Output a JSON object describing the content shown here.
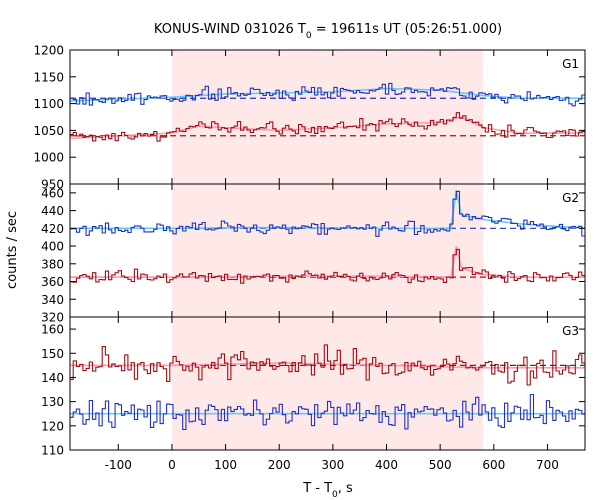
{
  "chart_data": {
    "type": "line",
    "title": "KONUS-WIND 031026 T",
    "title_sub": "0",
    "title_rest": " = 19611s UT (05:26:51.000)",
    "xlabel": "T - T",
    "xlabel_sub": "0",
    "xlabel_rest": ", s",
    "ylabel": "counts / sec",
    "xlim": [
      -190,
      770
    ],
    "x_ticks": [
      -100,
      0,
      100,
      200,
      300,
      400,
      500,
      600,
      700
    ],
    "highlight_interval": [
      0,
      580
    ],
    "colors": {
      "red_series": "#a01010",
      "blue_series": "#2233bb",
      "red_fit": "#ff99bb",
      "blue_fit": "#66ccee",
      "background_level": "#a01010",
      "shade": "#ffe8e8"
    },
    "panels": [
      {
        "label": "G1",
        "ylim": [
          950,
          1200
        ],
        "y_ticks": [
          950,
          1000,
          1050,
          1100,
          1150,
          1200
        ],
        "series": [
          {
            "color": "blue",
            "background": 1110,
            "x": [
              -190,
              -100,
              0,
              100,
              200,
              300,
              400,
              500,
              580,
              650,
              770
            ],
            "y": [
              1105,
              1108,
              1112,
              1118,
              1120,
              1122,
              1128,
              1125,
              1115,
              1110,
              1110
            ]
          },
          {
            "color": "red",
            "background": 1040,
            "x": [
              -190,
              -100,
              0,
              50,
              100,
              200,
              300,
              400,
              500,
              540,
              580,
              650,
              770
            ],
            "y": [
              1035,
              1040,
              1045,
              1058,
              1055,
              1050,
              1055,
              1062,
              1065,
              1075,
              1055,
              1045,
              1045
            ]
          }
        ]
      },
      {
        "label": "G2",
        "ylim": [
          320,
          470
        ],
        "y_ticks": [
          320,
          340,
          360,
          380,
          400,
          420,
          440,
          460
        ],
        "series": [
          {
            "color": "blue",
            "background": 420,
            "x": [
              -190,
              0,
              200,
              400,
              520,
              530,
              540,
              580,
              650,
              770
            ],
            "y": [
              420,
              420,
              421,
              420,
              420,
              463,
              435,
              430,
              425,
              420
            ]
          },
          {
            "color": "red",
            "background": 365,
            "x": [
              -190,
              0,
              200,
              400,
              520,
              530,
              540,
              580,
              650,
              770
            ],
            "y": [
              365,
              365,
              366,
              366,
              365,
              400,
              375,
              368,
              365,
              365
            ]
          }
        ]
      },
      {
        "label": "G3",
        "ylim": [
          110,
          165
        ],
        "y_ticks": [
          110,
          120,
          130,
          140,
          150,
          160
        ],
        "series": [
          {
            "color": "red",
            "background": 145,
            "x": [
              -190,
              0,
              200,
              400,
              580,
              770
            ],
            "y": [
              145,
              145,
              146,
              145,
              144,
              144
            ]
          },
          {
            "color": "blue",
            "background": 125,
            "x": [
              -190,
              0,
              200,
              400,
              580,
              770
            ],
            "y": [
              125,
              125,
              125,
              125,
              125,
              125
            ]
          }
        ]
      }
    ]
  }
}
